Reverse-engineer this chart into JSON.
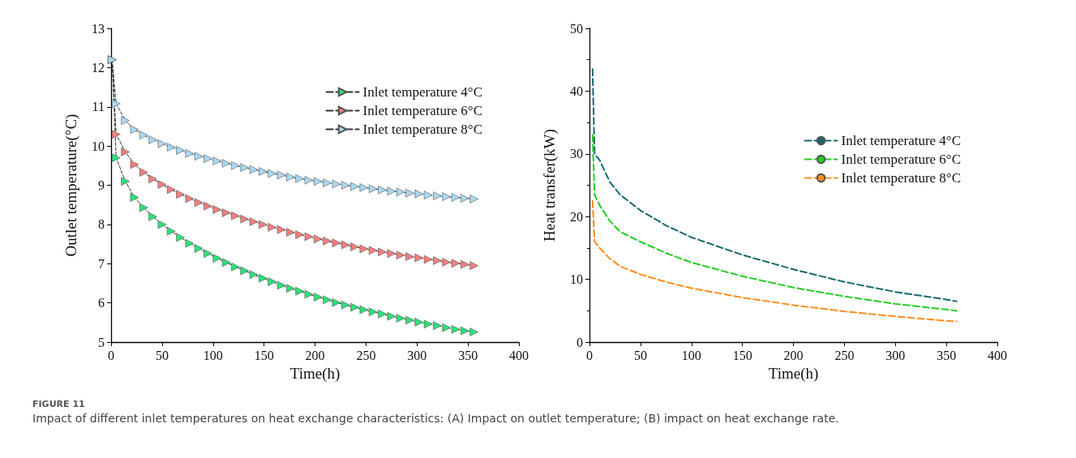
{
  "chart_data": [
    {
      "type": "line",
      "xlabel": "Time(h)",
      "ylabel": "Outlet temperature(°C)",
      "xlim": [
        0,
        400
      ],
      "xticks": [
        0,
        50,
        100,
        150,
        200,
        250,
        300,
        350,
        400
      ],
      "ylim": [
        5,
        13
      ],
      "yticks": [
        5,
        6,
        7,
        8,
        9,
        10,
        11,
        12,
        13
      ],
      "grid": false,
      "legend": "top right",
      "marker": "triangle",
      "line_style": "dashed",
      "x": [
        1,
        5,
        14,
        23,
        32,
        41,
        50,
        59,
        68,
        77,
        86,
        95,
        104,
        113,
        122,
        131,
        140,
        149,
        158,
        167,
        176,
        185,
        194,
        203,
        212,
        221,
        230,
        239,
        248,
        257,
        266,
        275,
        284,
        293,
        302,
        311,
        320,
        329,
        338,
        347,
        356
      ],
      "series": [
        {
          "name": "Inlet temperature 4°C",
          "color": "#2ee07a",
          "values": [
            12.2,
            9.7,
            9.1,
            8.69,
            8.43,
            8.2,
            8.0,
            7.83,
            7.67,
            7.52,
            7.39,
            7.26,
            7.14,
            7.03,
            6.92,
            6.82,
            6.72,
            6.63,
            6.54,
            6.45,
            6.37,
            6.3,
            6.22,
            6.15,
            6.08,
            6.01,
            5.95,
            5.89,
            5.83,
            5.77,
            5.72,
            5.66,
            5.61,
            5.56,
            5.51,
            5.46,
            5.42,
            5.37,
            5.33,
            5.29,
            5.26
          ]
        },
        {
          "name": "Inlet temperature 6°C",
          "color": "#f07f7f",
          "values": [
            12.2,
            10.3,
            9.85,
            9.53,
            9.33,
            9.16,
            9.02,
            8.89,
            8.77,
            8.66,
            8.56,
            8.47,
            8.38,
            8.3,
            8.22,
            8.14,
            8.07,
            8.0,
            7.93,
            7.87,
            7.8,
            7.74,
            7.69,
            7.63,
            7.58,
            7.53,
            7.48,
            7.43,
            7.38,
            7.34,
            7.3,
            7.26,
            7.22,
            7.18,
            7.15,
            7.11,
            7.08,
            7.04,
            7.01,
            6.98,
            6.95
          ]
        },
        {
          "name": "Inlet temperature 8°C",
          "color": "#a9d9f2",
          "values": [
            12.2,
            11.08,
            10.65,
            10.42,
            10.28,
            10.16,
            10.06,
            9.97,
            9.89,
            9.81,
            9.74,
            9.68,
            9.62,
            9.56,
            9.5,
            9.45,
            9.4,
            9.35,
            9.3,
            9.26,
            9.21,
            9.17,
            9.13,
            9.1,
            9.06,
            9.03,
            9.0,
            8.97,
            8.94,
            8.91,
            8.88,
            8.85,
            8.83,
            8.8,
            8.78,
            8.75,
            8.73,
            8.71,
            8.69,
            8.67,
            8.65
          ]
        }
      ],
      "annotations": [
        "FIGURE 11",
        "Impact of different inlet temperatures on heat exchange characteristics: (A) Impact on outlet temperature; (B) impact on heat exchange rate."
      ]
    },
    {
      "type": "line",
      "xlabel": "Time(h)",
      "ylabel": "Heat transfer(kW)",
      "xlim": [
        0,
        400
      ],
      "xticks": [
        0,
        50,
        100,
        150,
        200,
        250,
        300,
        350,
        400
      ],
      "ylim": [
        0,
        50
      ],
      "yticks": [
        0,
        10,
        20,
        30,
        40,
        50
      ],
      "grid": false,
      "legend": "right",
      "marker": "none",
      "line_style": "dashed",
      "x": [
        3,
        5,
        10,
        20,
        30,
        50,
        75,
        100,
        150,
        200,
        250,
        300,
        350,
        360
      ],
      "series": [
        {
          "name": "Inlet temperature 4°C",
          "color": "#16696b",
          "values": [
            43.5,
            30,
            29,
            25.5,
            23.5,
            21,
            18.6,
            16.7,
            13.9,
            11.6,
            9.6,
            8.0,
            6.8,
            6.5
          ]
        },
        {
          "name": "Inlet temperature 6°C",
          "color": "#22cc22",
          "values": [
            33,
            23.5,
            21.8,
            19.3,
            17.6,
            16,
            14.2,
            12.7,
            10.5,
            8.7,
            7.3,
            6.1,
            5.2,
            5.0
          ]
        },
        {
          "name": "Inlet temperature 8°C",
          "color": "#ff8c1a",
          "values": [
            22.5,
            16,
            15,
            13.3,
            12.1,
            10.8,
            9.6,
            8.6,
            7.1,
            5.9,
            4.9,
            4.1,
            3.4,
            3.3
          ]
        }
      ]
    }
  ]
}
